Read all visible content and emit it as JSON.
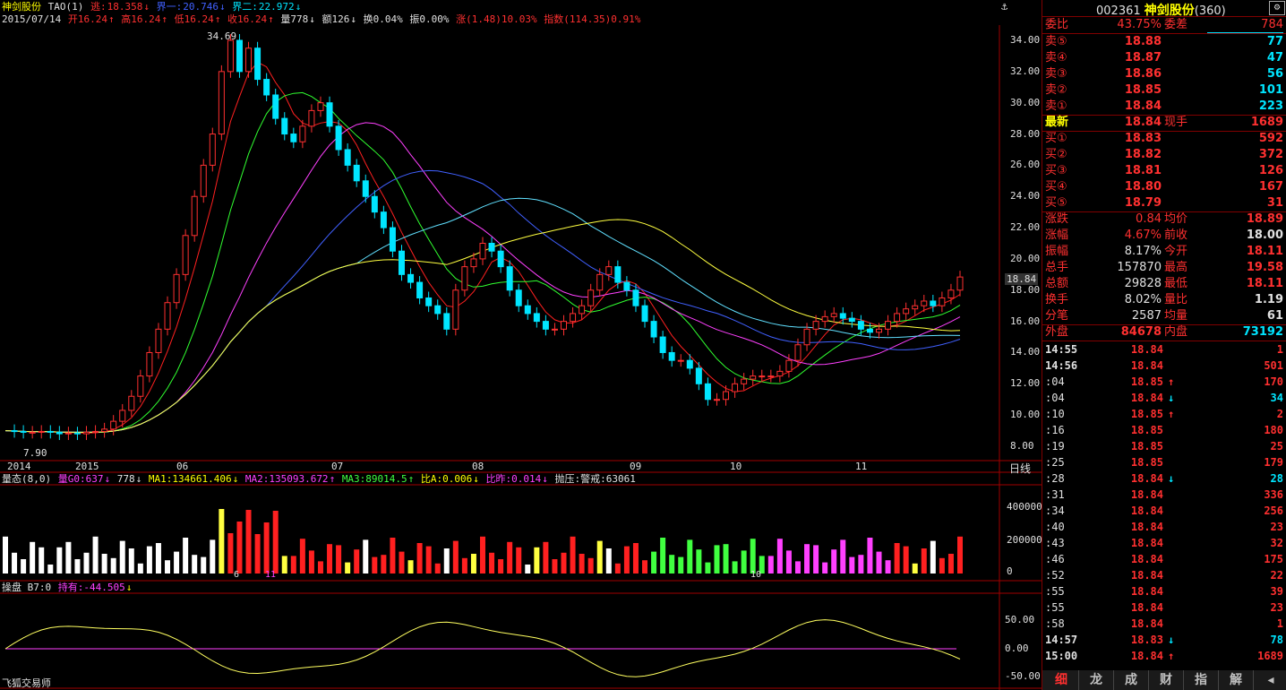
{
  "header1": {
    "name": "神剑股份",
    "ind": "TAO(1)",
    "esc_label": "逃:",
    "esc_val": "18.358",
    "b1_label": "界一:",
    "b1_val": "20.746",
    "b2_label": "界二:",
    "b2_val": "22.972"
  },
  "header2": {
    "date": "2015/07/14",
    "open": "开16.24",
    "high": "高16.24",
    "low": "低16.24",
    "close": "收16.24",
    "vol": "量778",
    "amt": "额126",
    "turn": "换0.04%",
    "amp": "振0.00%",
    "chg": "涨(1.48)10.03%",
    "idx": "指数(114.35)0.91%"
  },
  "price_chart": {
    "yticks": [
      "34.00",
      "32.00",
      "30.00",
      "28.00",
      "26.00",
      "24.00",
      "22.00",
      "20.00",
      "18.00",
      "16.00",
      "14.00",
      "12.00",
      "10.00",
      "8.00"
    ],
    "high_label": "34.69",
    "low_label": "7.90",
    "current_tag": "18.84",
    "xlabels": [
      "2014",
      "2015",
      "06",
      "07",
      "08",
      "09",
      "10",
      "11"
    ],
    "period": "日线"
  },
  "vol_header": {
    "name": "量态(8,0)",
    "v0": "量G0:637",
    "v": "778",
    "ma1": "MA1:134661.406",
    "ma2": "MA2:135093.672",
    "ma3": "MA3:89014.5",
    "ba": "比A:0.006",
    "bz": "比昨:0.014",
    "pz": "抛压:警戒:63061"
  },
  "vol_chart": {
    "yticks": [
      "400000",
      "200000",
      "0"
    ],
    "markers": [
      "6",
      "11",
      "10"
    ]
  },
  "osc_header": {
    "name": "操盘 B7:0",
    "hold": "持有:-44.505"
  },
  "osc_chart": {
    "yticks": [
      "50.00",
      "0.00",
      "-50.00"
    ]
  },
  "footer": "飞狐交易师",
  "quote": {
    "code": "002361",
    "name": "神剑股份",
    "suffix": "(360)",
    "weibi_label": "委比",
    "weibi": "43.75%",
    "weicha_label": "委差",
    "weicha": "784",
    "asks": [
      {
        "label": "卖⑤",
        "price": "18.88",
        "vol": "77"
      },
      {
        "label": "卖④",
        "price": "18.87",
        "vol": "47"
      },
      {
        "label": "卖③",
        "price": "18.86",
        "vol": "56"
      },
      {
        "label": "卖②",
        "price": "18.85",
        "vol": "101"
      },
      {
        "label": "卖①",
        "price": "18.84",
        "vol": "223"
      }
    ],
    "last_label": "最新",
    "last": "18.84",
    "xs_label": "现手",
    "xs": "1689",
    "bids": [
      {
        "label": "买①",
        "price": "18.83",
        "vol": "592"
      },
      {
        "label": "买②",
        "price": "18.82",
        "vol": "372"
      },
      {
        "label": "买③",
        "price": "18.81",
        "vol": "126"
      },
      {
        "label": "买④",
        "price": "18.80",
        "vol": "167"
      },
      {
        "label": "买⑤",
        "price": "18.79",
        "vol": "31"
      }
    ],
    "stats": [
      {
        "l1": "涨跌",
        "v1": "0.84",
        "l2": "均价",
        "v2": "18.89"
      },
      {
        "l1": "涨幅",
        "v1": "4.67%",
        "l2": "前收",
        "v2": "18.00"
      },
      {
        "l1": "振幅",
        "v1": "8.17%",
        "l2": "今开",
        "v2": "18.11"
      },
      {
        "l1": "总手",
        "v1": "157870",
        "l2": "最高",
        "v2": "19.58"
      },
      {
        "l1": "总额",
        "v1": "29828",
        "l2": "最低",
        "v2": "18.11"
      },
      {
        "l1": "换手",
        "v1": "8.02%",
        "l2": "量比",
        "v2": "1.19"
      },
      {
        "l1": "分笔",
        "v1": "2587",
        "l2": "均量",
        "v2": "61"
      }
    ],
    "outer_label": "外盘",
    "outer": "84678",
    "inner_label": "内盘",
    "inner": "73192"
  },
  "ticks": [
    {
      "t": "14:55",
      "p": "18.84",
      "a": "",
      "v": "1"
    },
    {
      "t": "14:56",
      "p": "18.84",
      "a": "",
      "v": "501"
    },
    {
      "t": ":04",
      "p": "18.85",
      "a": "↑",
      "v": "170"
    },
    {
      "t": ":04",
      "p": "18.84",
      "a": "↓",
      "v": "34"
    },
    {
      "t": ":10",
      "p": "18.85",
      "a": "↑",
      "v": "2"
    },
    {
      "t": ":16",
      "p": "18.85",
      "a": "",
      "v": "180"
    },
    {
      "t": ":19",
      "p": "18.85",
      "a": "",
      "v": "25"
    },
    {
      "t": ":25",
      "p": "18.85",
      "a": "",
      "v": "179"
    },
    {
      "t": ":28",
      "p": "18.84",
      "a": "↓",
      "v": "28"
    },
    {
      "t": ":31",
      "p": "18.84",
      "a": "",
      "v": "336"
    },
    {
      "t": ":34",
      "p": "18.84",
      "a": "",
      "v": "256"
    },
    {
      "t": ":40",
      "p": "18.84",
      "a": "",
      "v": "23"
    },
    {
      "t": ":43",
      "p": "18.84",
      "a": "",
      "v": "32"
    },
    {
      "t": ":46",
      "p": "18.84",
      "a": "",
      "v": "175"
    },
    {
      "t": ":52",
      "p": "18.84",
      "a": "",
      "v": "22"
    },
    {
      "t": ":55",
      "p": "18.84",
      "a": "",
      "v": "39"
    },
    {
      "t": ":55",
      "p": "18.84",
      "a": "",
      "v": "23"
    },
    {
      "t": ":58",
      "p": "18.84",
      "a": "",
      "v": "1"
    },
    {
      "t": "14:57",
      "p": "18.83",
      "a": "↓",
      "v": "78"
    },
    {
      "t": "15:00",
      "p": "18.84",
      "a": "↑",
      "v": "1689"
    }
  ],
  "tabs": [
    "细",
    "龙",
    "成",
    "财",
    "指",
    "解"
  ],
  "chart_data": {
    "type": "candlestick",
    "ylim": [
      7.5,
      35
    ],
    "series": [
      {
        "name": "price",
        "values": [
          9.0,
          8.95,
          8.9,
          8.9,
          8.95,
          8.9,
          8.8,
          8.85,
          8.8,
          8.9,
          8.95,
          9.1,
          9.6,
          10.3,
          11.2,
          12.5,
          14.0,
          15.5,
          17.2,
          19.0,
          21.5,
          24.0,
          26.0,
          28.0,
          32.0,
          34.0,
          32.0,
          33.5,
          31.5,
          30.5,
          29.0,
          28.0,
          27.5,
          28.5,
          29.5,
          30.0,
          28.5,
          27.0,
          26.0,
          25.0,
          24.0,
          23.0,
          22.0,
          20.5,
          19.0,
          18.5,
          17.5,
          17.0,
          16.5,
          15.5,
          18.0,
          19.5,
          20.0,
          21.0,
          20.5,
          19.5,
          18.0,
          17.0,
          16.5,
          16.0,
          15.5,
          15.5,
          16.0,
          16.5,
          17.0,
          18.0,
          19.0,
          19.5,
          18.5,
          18.0,
          17.0,
          16.0,
          15.0,
          14.0,
          13.5,
          13.5,
          13.0,
          12.0,
          11.0,
          11.0,
          11.5,
          12.0,
          12.3,
          12.5,
          12.5,
          12.5,
          12.8,
          13.5,
          14.5,
          15.5,
          16.0,
          16.3,
          16.5,
          16.2,
          16.0,
          15.5,
          15.3,
          15.5,
          16.0,
          16.5,
          16.8,
          17.0,
          17.3,
          17.0,
          17.5,
          18.0,
          18.84
        ]
      }
    ]
  }
}
